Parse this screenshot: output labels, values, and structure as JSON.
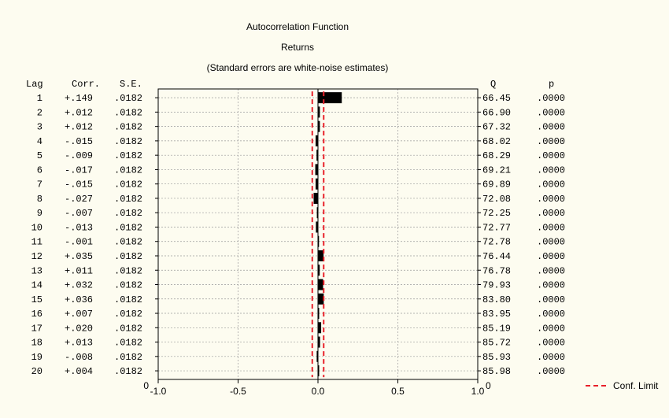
{
  "chart_data": {
    "type": "bar",
    "orientation": "horizontal",
    "title": "Autocorrelation Function",
    "subtitle": "Returns",
    "note": "(Standard errors are white-noise estimates)",
    "left_headers": {
      "lag": "Lag",
      "corr": "Corr.",
      "se": "S.E."
    },
    "right_headers": {
      "q": "Q",
      "p": "p"
    },
    "rows": [
      {
        "lag": "1",
        "corr_text": "+.149",
        "se": ".0182",
        "q": "66.45",
        "p": ".0000",
        "value": 0.149
      },
      {
        "lag": "2",
        "corr_text": "+.012",
        "se": ".0182",
        "q": "66.90",
        "p": ".0000",
        "value": 0.012
      },
      {
        "lag": "3",
        "corr_text": "+.012",
        "se": ".0182",
        "q": "67.32",
        "p": ".0000",
        "value": 0.012
      },
      {
        "lag": "4",
        "corr_text": "-.015",
        "se": ".0182",
        "q": "68.02",
        "p": ".0000",
        "value": -0.015
      },
      {
        "lag": "5",
        "corr_text": "-.009",
        "se": ".0182",
        "q": "68.29",
        "p": ".0000",
        "value": -0.009
      },
      {
        "lag": "6",
        "corr_text": "-.017",
        "se": ".0182",
        "q": "69.21",
        "p": ".0000",
        "value": -0.017
      },
      {
        "lag": "7",
        "corr_text": "-.015",
        "se": ".0182",
        "q": "69.89",
        "p": ".0000",
        "value": -0.015
      },
      {
        "lag": "8",
        "corr_text": "-.027",
        "se": ".0182",
        "q": "72.08",
        "p": ".0000",
        "value": -0.027
      },
      {
        "lag": "9",
        "corr_text": "-.007",
        "se": ".0182",
        "q": "72.25",
        "p": ".0000",
        "value": -0.007
      },
      {
        "lag": "10",
        "corr_text": "-.013",
        "se": ".0182",
        "q": "72.77",
        "p": ".0000",
        "value": -0.013
      },
      {
        "lag": "11",
        "corr_text": "-.001",
        "se": ".0182",
        "q": "72.78",
        "p": ".0000",
        "value": -0.001
      },
      {
        "lag": "12",
        "corr_text": "+.035",
        "se": ".0182",
        "q": "76.44",
        "p": ".0000",
        "value": 0.035
      },
      {
        "lag": "13",
        "corr_text": "+.011",
        "se": ".0182",
        "q": "76.78",
        "p": ".0000",
        "value": 0.011
      },
      {
        "lag": "14",
        "corr_text": "+.032",
        "se": ".0182",
        "q": "79.93",
        "p": ".0000",
        "value": 0.032
      },
      {
        "lag": "15",
        "corr_text": "+.036",
        "se": ".0182",
        "q": "83.80",
        "p": ".0000",
        "value": 0.036
      },
      {
        "lag": "16",
        "corr_text": "+.007",
        "se": ".0182",
        "q": "83.95",
        "p": ".0000",
        "value": 0.007
      },
      {
        "lag": "17",
        "corr_text": "+.020",
        "se": ".0182",
        "q": "85.19",
        "p": ".0000",
        "value": 0.02
      },
      {
        "lag": "18",
        "corr_text": "+.013",
        "se": ".0182",
        "q": "85.72",
        "p": ".0000",
        "value": 0.013
      },
      {
        "lag": "19",
        "corr_text": "-.008",
        "se": ".0182",
        "q": "85.93",
        "p": ".0000",
        "value": -0.008
      },
      {
        "lag": "20",
        "corr_text": "+.004",
        "se": ".0182",
        "q": "85.98",
        "p": ".0000",
        "value": 0.004
      }
    ],
    "xlim": [
      -1.0,
      1.0
    ],
    "xticks": [
      {
        "value": -1.0,
        "label": "-1.0"
      },
      {
        "value": -0.5,
        "label": "-0.5"
      },
      {
        "value": 0.0,
        "label": "0.0"
      },
      {
        "value": 0.5,
        "label": "0.5"
      },
      {
        "value": 1.0,
        "label": "1.0"
      }
    ],
    "y_axis_zero_label": "0",
    "right_axis_zero_label": "0",
    "conf_limit": 0.0357,
    "legend": {
      "label": "Conf. Limit",
      "placement": "bottom-right"
    },
    "colors": {
      "bar": "#000000",
      "conf_limit": "#e8202a",
      "background": "#fdfcf0",
      "grid": "#9a9a9a",
      "zero_line": "#000000"
    },
    "grid": true
  }
}
